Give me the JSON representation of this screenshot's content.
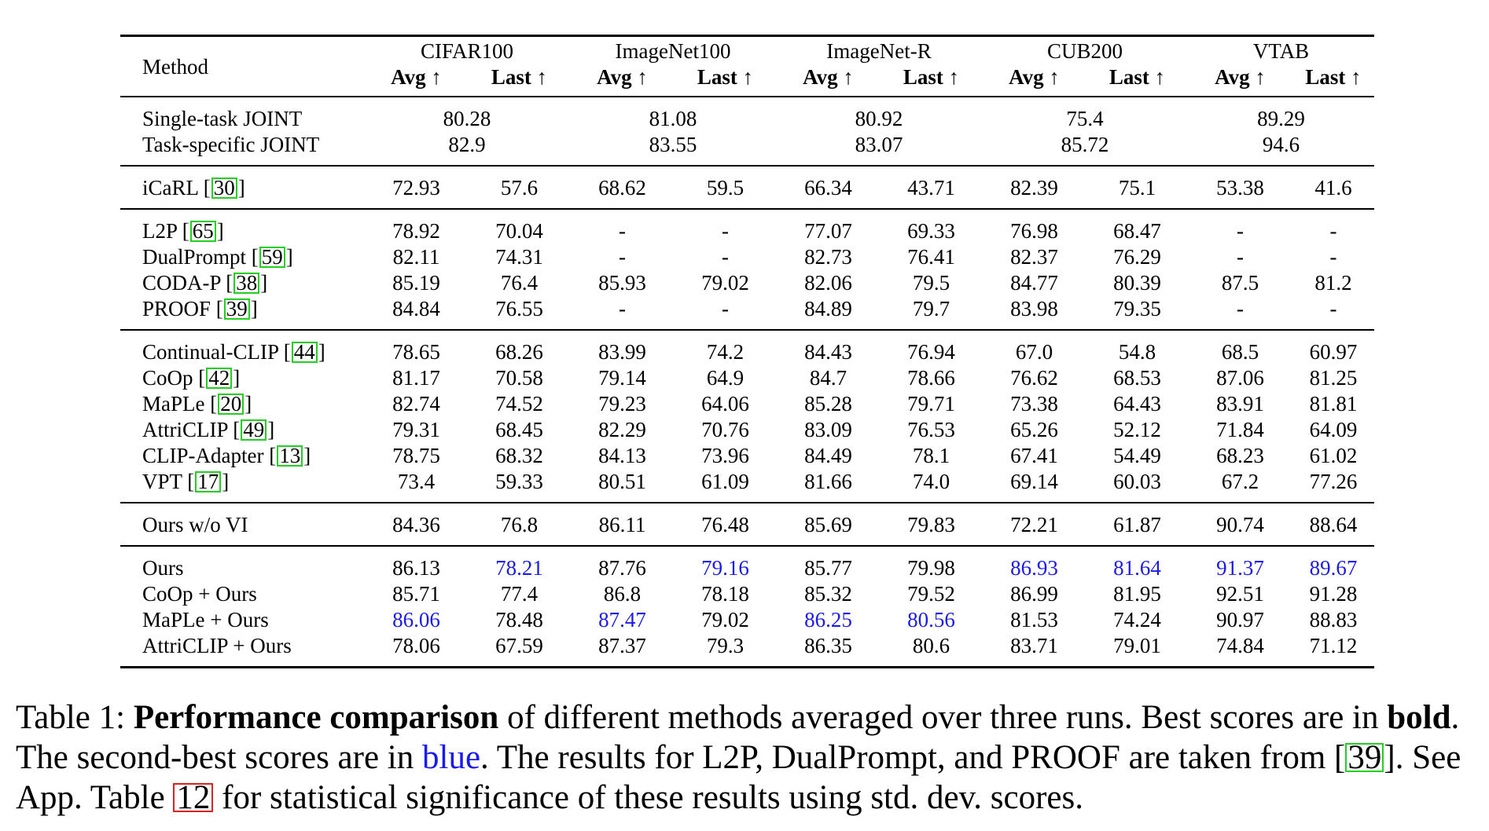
{
  "table": {
    "method_header": "Method",
    "datasets": [
      "CIFAR100",
      "ImageNet100",
      "ImageNet-R",
      "CUB200",
      "VTAB"
    ],
    "subheaders": [
      "Avg ↑",
      "Last ↑"
    ],
    "joint_rows": [
      {
        "method": "Single-task JOINT",
        "values": [
          "80.28",
          "81.08",
          "80.92",
          "75.4",
          "89.29"
        ]
      },
      {
        "method": "Task-specific JOINT",
        "values": [
          "82.9",
          "83.55",
          "83.07",
          "85.72",
          "94.6"
        ]
      }
    ],
    "groups": [
      [
        {
          "method": "iCaRL [",
          "ref": "30",
          "values": [
            "72.93",
            "57.6",
            "68.62",
            "59.5",
            "66.34",
            "43.71",
            "82.39",
            "75.1",
            "53.38",
            "41.6"
          ]
        }
      ],
      [
        {
          "method": "L2P [",
          "ref": "65",
          "values": [
            "78.92",
            "70.04",
            "-",
            "-",
            "77.07",
            "69.33",
            "76.98",
            "68.47",
            "-",
            "-"
          ]
        },
        {
          "method": "DualPrompt [",
          "ref": "59",
          "values": [
            "82.11",
            "74.31",
            "-",
            "-",
            "82.73",
            "76.41",
            "82.37",
            "76.29",
            "-",
            "-"
          ]
        },
        {
          "method": "CODA-P [",
          "ref": "38",
          "values": [
            "85.19",
            "76.4",
            "85.93",
            "79.02",
            "82.06",
            "79.5",
            "84.77",
            "80.39",
            "87.5",
            "81.2"
          ]
        },
        {
          "method": "PROOF [",
          "ref": "39",
          "values": [
            "84.84",
            "76.55",
            "-",
            "-",
            "84.89",
            "79.7",
            "83.98",
            "79.35",
            "-",
            "-"
          ]
        }
      ],
      [
        {
          "method": "Continual-CLIP [",
          "ref": "44",
          "values": [
            "78.65",
            "68.26",
            "83.99",
            "74.2",
            "84.43",
            "76.94",
            "67.0",
            "54.8",
            "68.5",
            "60.97"
          ]
        },
        {
          "method": "CoOp [",
          "ref": "42",
          "values": [
            "81.17",
            "70.58",
            "79.14",
            "64.9",
            "84.7",
            "78.66",
            "76.62",
            "68.53",
            "87.06",
            "81.25"
          ]
        },
        {
          "method": "MaPLe [",
          "ref": "20",
          "values": [
            "82.74",
            "74.52",
            "79.23",
            "64.06",
            "85.28",
            "79.71",
            "73.38",
            "64.43",
            "83.91",
            "81.81"
          ]
        },
        {
          "method": "AttriCLIP [",
          "ref": "49",
          "values": [
            "79.31",
            "68.45",
            "82.29",
            "70.76",
            "83.09",
            "76.53",
            "65.26",
            "52.12",
            "71.84",
            "64.09"
          ]
        },
        {
          "method": "CLIP-Adapter [",
          "ref": "13",
          "values": [
            "78.75",
            "68.32",
            "84.13",
            "73.96",
            "84.49",
            "78.1",
            "67.41",
            "54.49",
            "68.23",
            "61.02"
          ]
        },
        {
          "method": "VPT [",
          "ref": "17",
          "values": [
            "73.4",
            "59.33",
            "80.51",
            "61.09",
            "81.66",
            "74.0",
            "69.14",
            "60.03",
            "67.2",
            "77.26"
          ]
        }
      ],
      [
        {
          "method": "Ours w/o VI",
          "values": [
            "84.36",
            "76.8",
            "86.11",
            "76.48",
            "85.69",
            "79.83",
            "72.21",
            "61.87",
            "90.74",
            "88.64"
          ]
        }
      ],
      [
        {
          "method": "Ours",
          "values": [
            "86.13",
            "78.21",
            "87.76",
            "79.16",
            "85.77",
            "79.98",
            "86.93",
            "81.64",
            "91.37",
            "89.67"
          ],
          "styles": [
            "b",
            "blue",
            "b",
            "blue",
            "",
            "",
            "blue",
            "blue",
            "blue",
            "blue"
          ]
        },
        {
          "method": "CoOp + Ours",
          "values": [
            "85.71",
            "77.4",
            "86.8",
            "78.18",
            "85.32",
            "79.52",
            "86.99",
            "81.95",
            "92.51",
            "91.28"
          ],
          "styles": [
            "",
            "",
            "",
            "",
            "",
            "",
            "b",
            "b",
            "b",
            "b"
          ]
        },
        {
          "method": "MaPLe + Ours",
          "values": [
            "86.06",
            "78.48",
            "87.47",
            "79.02",
            "86.25",
            "80.56",
            "81.53",
            "74.24",
            "90.97",
            "88.83"
          ],
          "styles": [
            "blue",
            "b",
            "blue",
            "",
            "blue",
            "blue",
            "",
            "",
            "",
            ""
          ]
        },
        {
          "method": "AttriCLIP + Ours",
          "values": [
            "78.06",
            "67.59",
            "87.37",
            "79.3",
            "86.35",
            "80.6",
            "83.71",
            "79.01",
            "74.84",
            "71.12"
          ],
          "styles": [
            "",
            "",
            "",
            "b",
            "b",
            "b",
            "",
            "",
            "",
            ""
          ]
        }
      ]
    ]
  },
  "caption": {
    "label": "Table 1: ",
    "bold_lead": "Performance comparison",
    "t1": " of different methods averaged over three runs. Best scores are in ",
    "bold_word": "bold",
    "t2": ". The second-best scores are in ",
    "blue_word": "blue",
    "t3": ". The results for L2P, DualPrompt, and PROOF are taken from [",
    "ref1": "39",
    "t4": "]. See App. Table ",
    "ref2": "12",
    "t5": " for statistical significance of these results using std. dev. scores."
  }
}
